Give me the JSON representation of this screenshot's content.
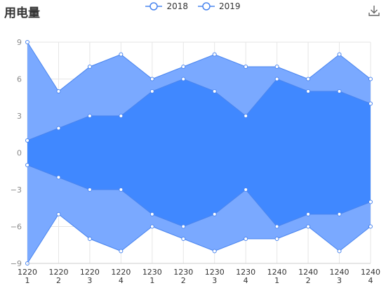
{
  "title": "用电量",
  "toolbar": {
    "download_icon": "download-icon"
  },
  "colors": {
    "outer": "#7aa9ff",
    "inner": "#4088ff",
    "line": "#4a85ef",
    "grid": "#e6e6e6",
    "axis": "#cccccc"
  },
  "chart_data": {
    "type": "area",
    "title": "用电量",
    "categories": [
      "1220\n1",
      "1220\n2",
      "1220\n3",
      "1220\n4",
      "1230\n1",
      "1230\n2",
      "1230\n3",
      "1230\n4",
      "1240\n1",
      "1240\n2",
      "1240\n3",
      "1240\n4"
    ],
    "series": [
      {
        "name": "2018",
        "upper": [
          9,
          5,
          7,
          8,
          6,
          7,
          8,
          7,
          7,
          6,
          8,
          6
        ],
        "lower": [
          -9,
          -5,
          -7,
          -8,
          -6,
          -7,
          -8,
          -7,
          -7,
          -6,
          -8,
          -6
        ]
      },
      {
        "name": "2019",
        "upper": [
          1,
          2,
          3,
          3,
          5,
          6,
          5,
          3,
          6,
          5,
          5,
          4
        ],
        "lower": [
          -1,
          -2,
          -3,
          -3,
          -5,
          -6,
          -5,
          -3,
          -6,
          -5,
          -5,
          -4
        ]
      }
    ],
    "y_ticks": [
      -9,
      -6,
      -3,
      0,
      3,
      6,
      9
    ],
    "ylim": [
      -9,
      9
    ],
    "grid": true,
    "legend_position": "top-center"
  }
}
